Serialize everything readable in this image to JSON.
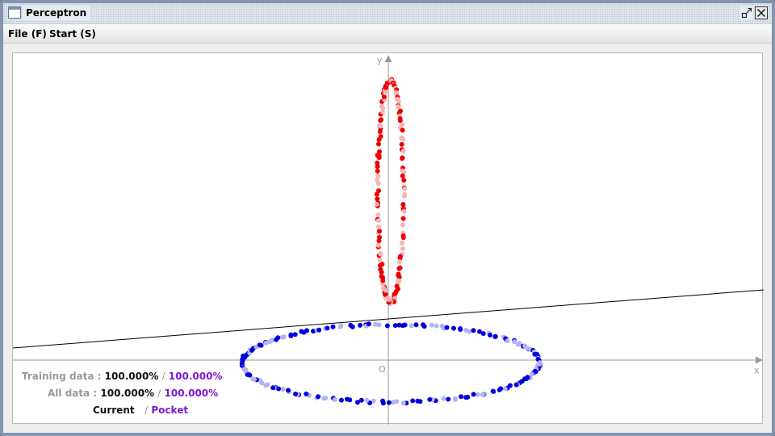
{
  "window": {
    "title": "Perceptron",
    "icons": {
      "app": "window-icon",
      "restore": "restore-icon",
      "close": "close-icon"
    }
  },
  "menu": {
    "file": "File (F)",
    "start": "Start (S)"
  },
  "axes": {
    "x_label": "x",
    "y_label": "y",
    "origin_label": "O"
  },
  "stats": {
    "training_label": "Training data :",
    "training_current": "100.000%",
    "training_pocket": "100.000%",
    "all_label": "All data :",
    "all_current": "100.000%",
    "all_pocket": "100.000%",
    "legend_current": "Current",
    "legend_separator": "/",
    "legend_pocket": "Pocket"
  },
  "colors": {
    "positive_current": "#ee0000",
    "positive_pocket": "#f4b6b6",
    "negative_current": "#0000dd",
    "negative_pocket": "#b4b4f4",
    "axis": "#999999",
    "boundary": "#000000",
    "pocket_text": "#7b18d6"
  }
}
